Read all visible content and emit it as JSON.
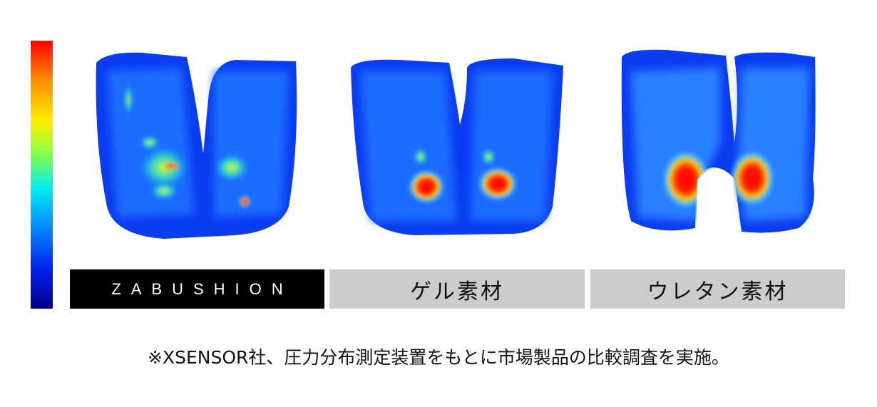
{
  "legend": {
    "type": "pressure-color-scale",
    "colors": [
      "#ff0000",
      "#ff8800",
      "#ffee00",
      "#88ff44",
      "#00eeee",
      "#0088ff",
      "#0022ee",
      "#000088"
    ]
  },
  "panels": [
    {
      "label": "ZABUSHION"
    },
    {
      "label": "ゲル素材"
    },
    {
      "label": "ウレタン素材"
    }
  ],
  "footnote": "※XSENSOR社、圧力分布測定装置をもとに市場製品の比較調査を実施。"
}
